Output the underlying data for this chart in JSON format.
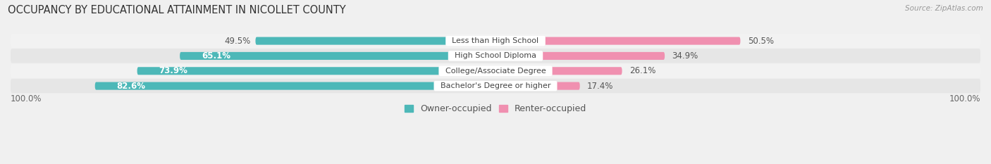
{
  "title": "OCCUPANCY BY EDUCATIONAL ATTAINMENT IN NICOLLET COUNTY",
  "source": "Source: ZipAtlas.com",
  "categories": [
    "Less than High School",
    "High School Diploma",
    "College/Associate Degree",
    "Bachelor's Degree or higher"
  ],
  "owner_pct": [
    49.5,
    65.1,
    73.9,
    82.6
  ],
  "renter_pct": [
    50.5,
    34.9,
    26.1,
    17.4
  ],
  "owner_color": "#4db8b8",
  "renter_color": "#f090b0",
  "row_bg_light": "#f2f2f2",
  "row_bg_dark": "#e6e6e6",
  "label_bg_color": "#ffffff",
  "owner_label": "Owner-occupied",
  "renter_label": "Renter-occupied",
  "axis_label_left": "100.0%",
  "axis_label_right": "100.0%",
  "title_fontsize": 10.5,
  "source_fontsize": 7.5,
  "bar_label_fontsize": 8.5,
  "category_fontsize": 8,
  "legend_fontsize": 9,
  "axis_tick_fontsize": 8.5
}
